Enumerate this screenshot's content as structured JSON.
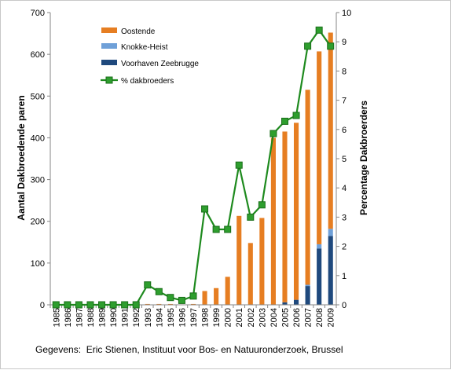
{
  "chart_data": {
    "type": "bar",
    "stacked": true,
    "categories": [
      "1985",
      "1986",
      "1987",
      "1988",
      "1989",
      "1990",
      "1991",
      "1992",
      "1993",
      "1994",
      "1995",
      "1996",
      "1997",
      "1998",
      "1999",
      "2000",
      "2001",
      "2002",
      "2003",
      "2004",
      "2005",
      "2006",
      "2007",
      "2008",
      "2009"
    ],
    "series": [
      {
        "name": "Voorhaven Zeebrugge",
        "type": "bar",
        "axis": "left",
        "color": "#1f497d",
        "values": [
          0,
          0,
          0,
          0,
          0,
          0,
          0,
          0,
          0,
          0,
          0,
          0,
          0,
          0,
          0,
          0,
          0,
          0,
          0,
          0,
          6,
          12,
          45,
          135,
          165
        ]
      },
      {
        "name": "Knokke-Heist",
        "type": "bar",
        "axis": "left",
        "color": "#6fa0d8",
        "values": [
          0,
          0,
          0,
          0,
          0,
          0,
          0,
          0,
          0,
          0,
          0,
          0,
          0,
          0,
          0,
          0,
          0,
          0,
          0,
          0,
          0,
          0,
          3,
          10,
          17
        ]
      },
      {
        "name": "Oostende",
        "type": "bar",
        "axis": "left",
        "color": "#e67e22",
        "values": [
          0,
          0,
          0,
          0,
          0,
          0,
          0,
          0,
          2,
          2,
          2,
          1,
          2,
          33,
          40,
          67,
          213,
          148,
          208,
          400,
          409,
          424,
          467,
          462,
          470
        ]
      },
      {
        "name": "% dakbroeders",
        "type": "line",
        "axis": "right",
        "color": "#1e8a1e",
        "marker": "square",
        "values": [
          0,
          0,
          0,
          0,
          0,
          0,
          0,
          0,
          0.68,
          0.45,
          0.25,
          0.15,
          0.3,
          3.28,
          2.58,
          2.58,
          4.78,
          3.0,
          3.42,
          5.86,
          6.28,
          6.48,
          8.85,
          9.4,
          8.85
        ]
      }
    ],
    "ylabel": "Aantal Dakbroedende paren",
    "y2label": "Percentage Dakbroerders",
    "ylim": [
      0,
      700
    ],
    "y2lim": [
      0,
      10
    ],
    "yticks": [
      "0",
      "100",
      "200",
      "300",
      "400",
      "500",
      "600",
      "700"
    ],
    "y2ticks": [
      "0",
      "1",
      "2",
      "3",
      "4",
      "5",
      "6",
      "7",
      "8",
      "9",
      "10"
    ],
    "legend_position": "top-left",
    "grid": false
  },
  "source_note": "Gegevens:  Eric Stienen, Instituut voor Bos- en Natuuronderzoek, Brussel"
}
